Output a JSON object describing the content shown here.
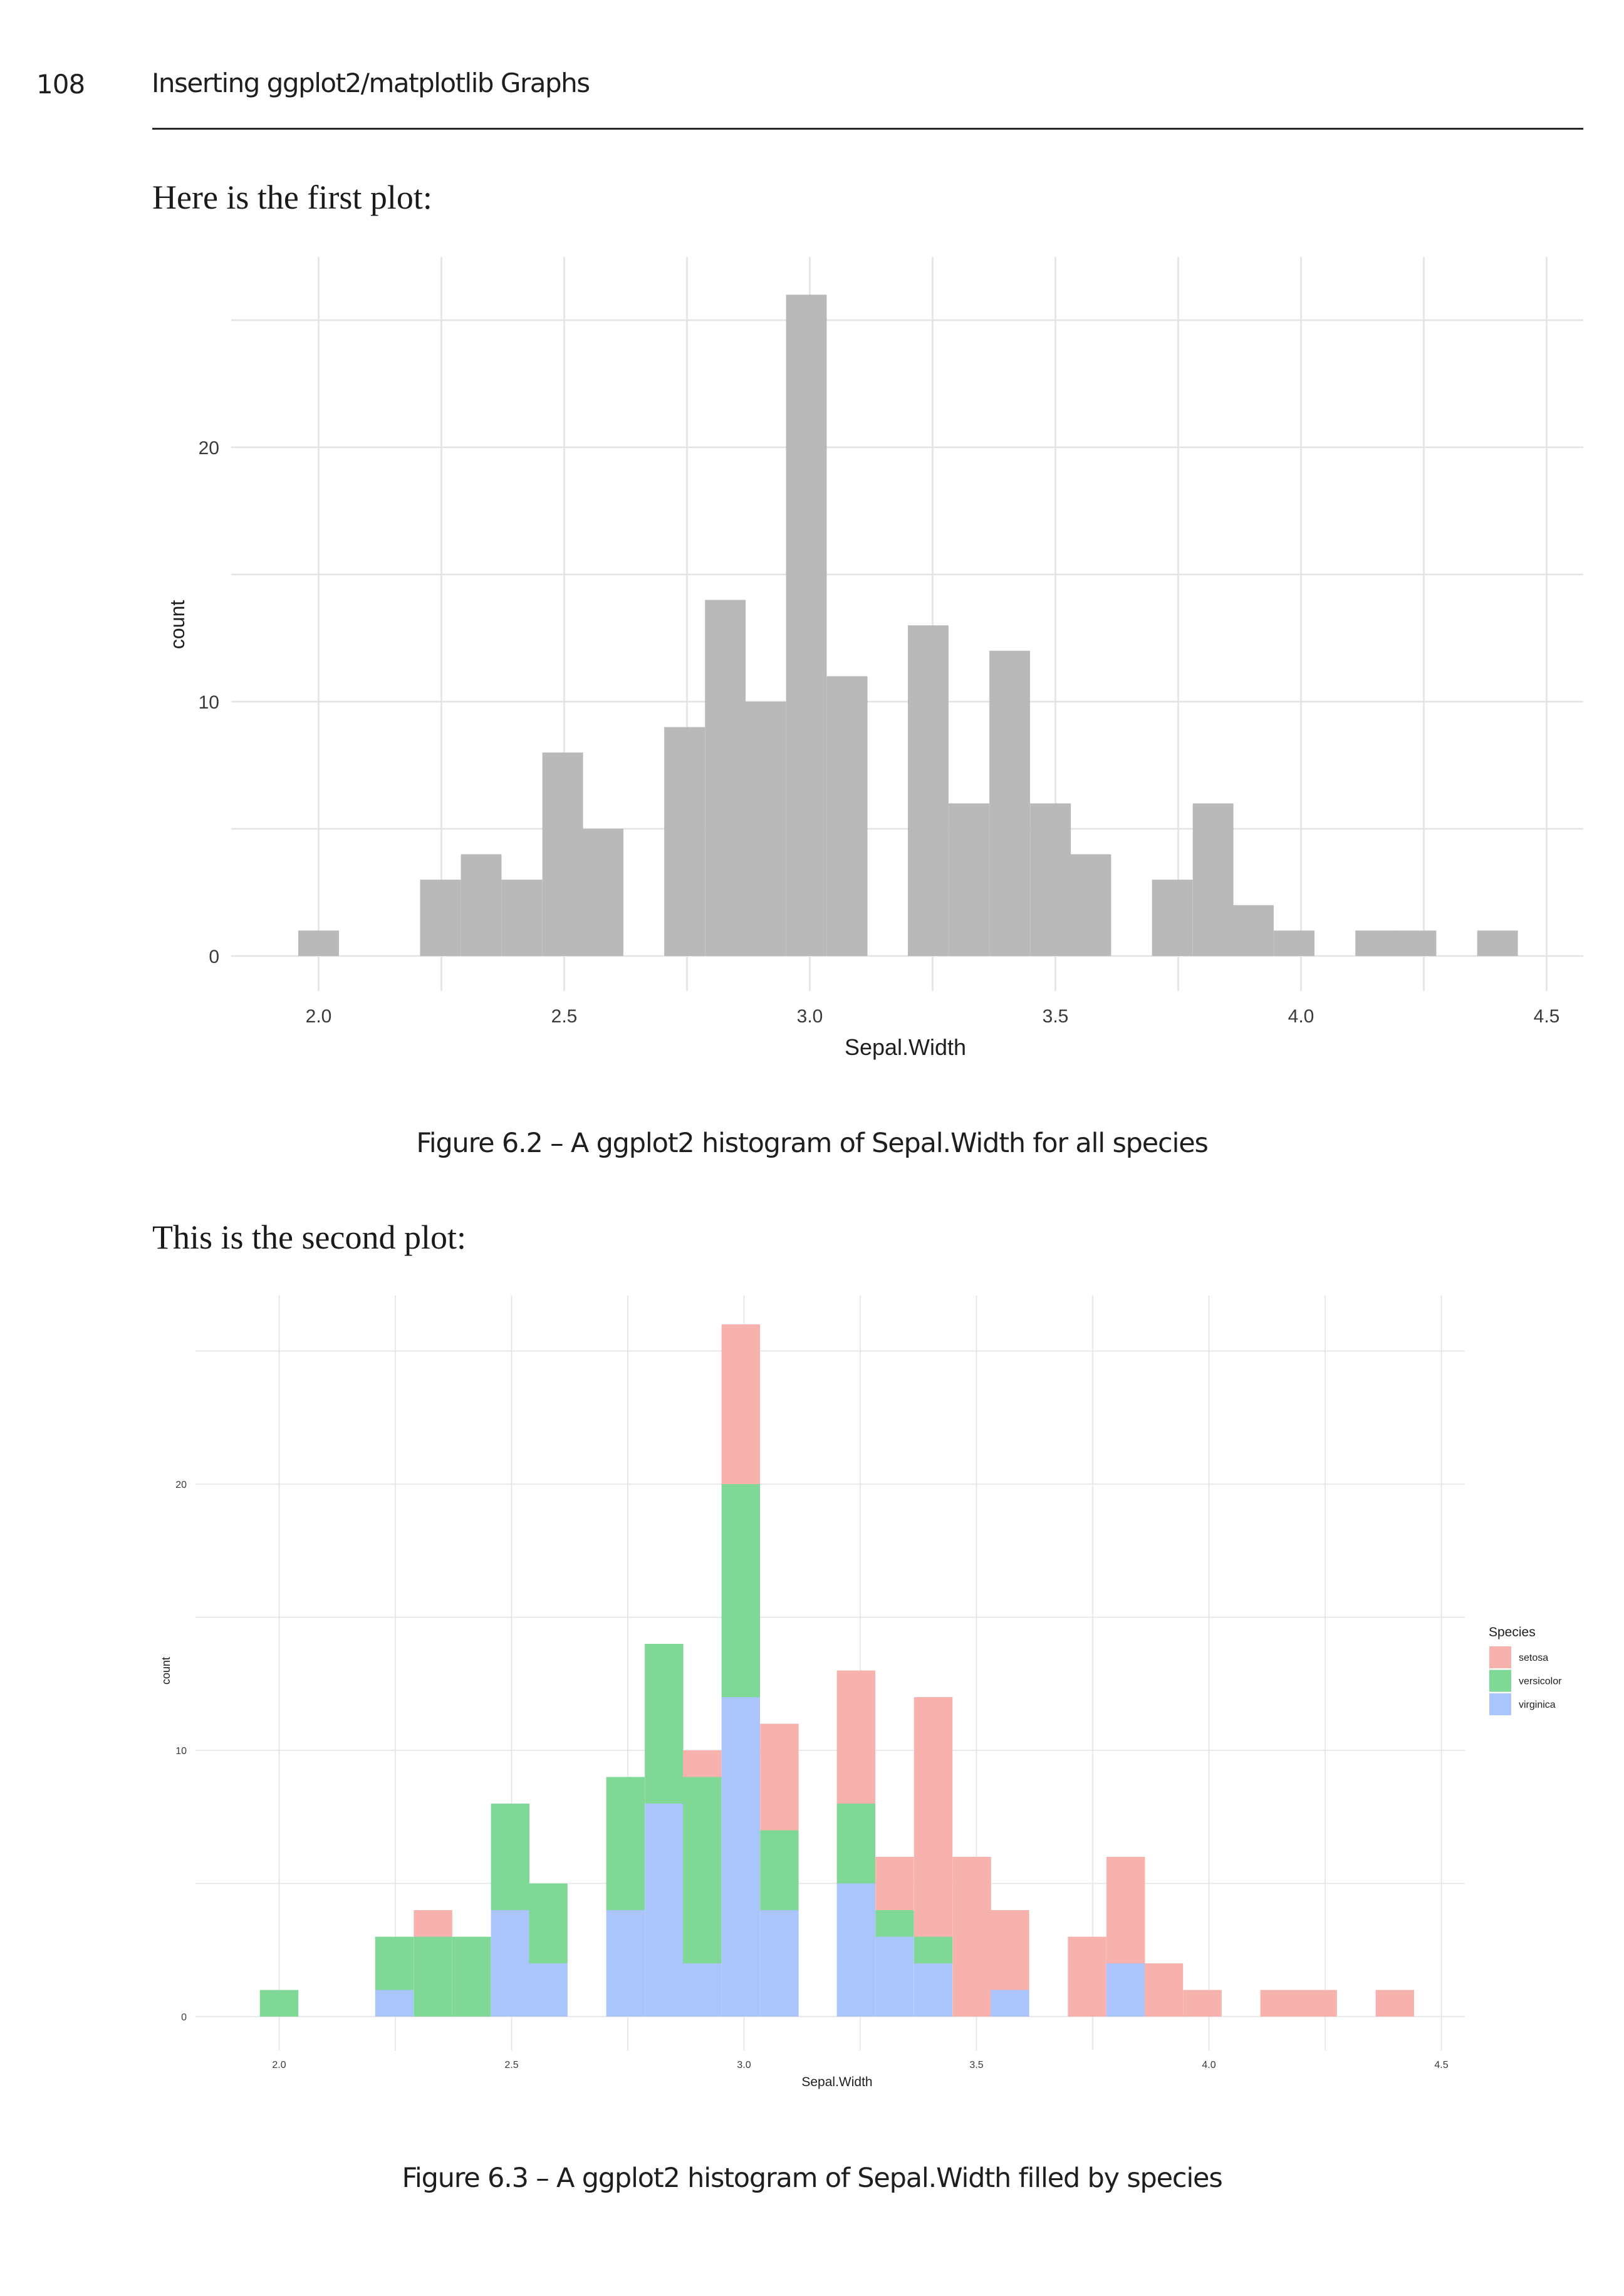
{
  "page": {
    "number": "108",
    "running_head": "Inserting ggplot2/matplotlib Graphs",
    "intro_first": "Here is the first plot:",
    "intro_second": "This is the second plot:",
    "caption_first": "Figure 6.2 – A ggplot2 histogram of Sepal.Width for all species",
    "caption_second": "Figure 6.3 – A ggplot2 histogram of Sepal.Width filled by species"
  },
  "colors": {
    "gray_fill": "#b5b5b5",
    "gridline": "#e3e3e3",
    "setosa": "#f7b2ae",
    "versicolor": "#80d896",
    "virginica": "#aac5fb",
    "text": "#1e1e1e"
  },
  "chart_data": [
    {
      "type": "bar",
      "subtype": "histogram",
      "title": "",
      "xlabel": "Sepal.Width",
      "ylabel": "count",
      "xlim": [
        1.9,
        4.6
      ],
      "ylim": [
        0,
        26
      ],
      "x_ticks": [
        "2.0",
        "2.5",
        "3.0",
        "3.5",
        "4.0",
        "4.5"
      ],
      "x_tick_values": [
        2.0,
        2.5,
        3.0,
        3.5,
        4.0,
        4.5
      ],
      "y_ticks": [
        "0",
        "10",
        "20"
      ],
      "y_tick_values": [
        0,
        10,
        20
      ],
      "y_minor_grid": [
        5,
        15,
        25
      ],
      "x_minor_grid": [
        2.25,
        2.75,
        3.25,
        3.75,
        4.25
      ],
      "grid": true,
      "legend": "none",
      "bins": 30,
      "binwidth": 0.0828,
      "bin_centers": [
        2.0,
        2.083,
        2.166,
        2.248,
        2.331,
        2.414,
        2.497,
        2.579,
        2.662,
        2.745,
        2.828,
        2.91,
        2.993,
        3.076,
        3.159,
        3.241,
        3.324,
        3.407,
        3.49,
        3.572,
        3.655,
        3.738,
        3.821,
        3.903,
        3.986,
        4.069,
        4.152,
        4.234,
        4.317,
        4.4
      ],
      "values": [
        1,
        0,
        0,
        3,
        4,
        3,
        8,
        5,
        0,
        9,
        14,
        10,
        26,
        11,
        0,
        13,
        6,
        12,
        6,
        4,
        0,
        3,
        6,
        2,
        1,
        0,
        1,
        1,
        0,
        1
      ]
    },
    {
      "type": "bar",
      "subtype": "stacked histogram",
      "title": "",
      "xlabel": "Sepal.Width",
      "ylabel": "count",
      "xlim": [
        1.9,
        4.6
      ],
      "ylim": [
        0,
        26
      ],
      "x_ticks": [
        "2.0",
        "2.5",
        "3.0",
        "3.5",
        "4.0",
        "4.5"
      ],
      "x_tick_values": [
        2.0,
        2.5,
        3.0,
        3.5,
        4.0,
        4.5
      ],
      "y_ticks": [
        "0",
        "10",
        "20"
      ],
      "y_tick_values": [
        0,
        10,
        20
      ],
      "y_minor_grid": [
        5,
        15,
        25
      ],
      "x_minor_grid": [
        2.25,
        2.75,
        3.25,
        3.75,
        4.25
      ],
      "grid": true,
      "legend": "right",
      "legend_title": "Species",
      "bins": 30,
      "binwidth": 0.0828,
      "bin_centers": [
        2.0,
        2.083,
        2.166,
        2.248,
        2.331,
        2.414,
        2.497,
        2.579,
        2.662,
        2.745,
        2.828,
        2.91,
        2.993,
        3.076,
        3.159,
        3.241,
        3.324,
        3.407,
        3.49,
        3.572,
        3.655,
        3.738,
        3.821,
        3.903,
        3.986,
        4.069,
        4.152,
        4.234,
        4.317,
        4.4
      ],
      "stack_order_bottom_to_top": [
        "virginica",
        "versicolor",
        "setosa"
      ],
      "series": [
        {
          "name": "setosa",
          "color_key": "setosa",
          "values": [
            0,
            0,
            0,
            0,
            1,
            0,
            0,
            0,
            0,
            0,
            0,
            1,
            6,
            4,
            0,
            5,
            2,
            9,
            6,
            3,
            0,
            3,
            4,
            2,
            1,
            0,
            1,
            1,
            0,
            1
          ]
        },
        {
          "name": "versicolor",
          "color_key": "versicolor",
          "values": [
            1,
            0,
            0,
            2,
            3,
            3,
            4,
            3,
            0,
            5,
            6,
            7,
            8,
            3,
            0,
            3,
            1,
            1,
            0,
            0,
            0,
            0,
            0,
            0,
            0,
            0,
            0,
            0,
            0,
            0
          ]
        },
        {
          "name": "virginica",
          "color_key": "virginica",
          "values": [
            0,
            0,
            0,
            1,
            0,
            0,
            4,
            2,
            0,
            4,
            8,
            2,
            12,
            4,
            0,
            5,
            3,
            2,
            0,
            1,
            0,
            0,
            2,
            0,
            0,
            0,
            0,
            0,
            0,
            0
          ]
        }
      ]
    }
  ]
}
